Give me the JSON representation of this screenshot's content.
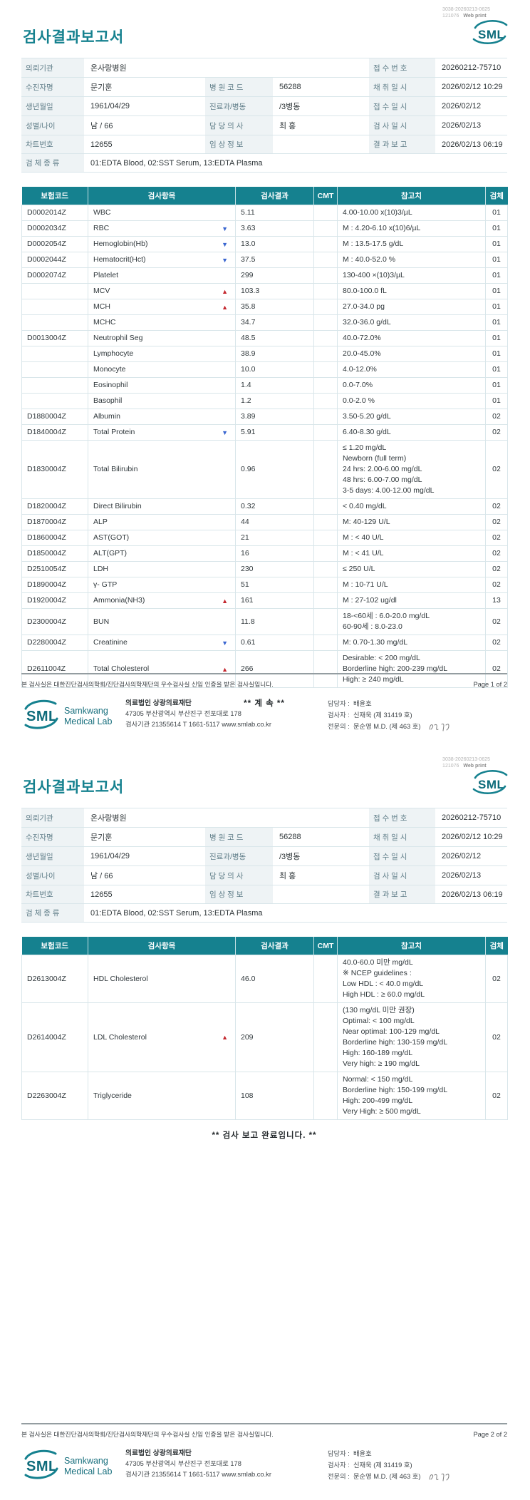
{
  "title": "검사결과보고서",
  "meta": {
    "print_code": "3038-20260213-0625",
    "print_serial": "121076",
    "print_label": "Web print"
  },
  "logo": {
    "abbr": "SML",
    "line1": "Samkwang",
    "line2": "Medical Lab"
  },
  "patient_info": {
    "rows": [
      [
        {
          "k": "label",
          "t": "의뢰기관"
        },
        {
          "k": "value",
          "t": "온사랑병원",
          "span": 3
        },
        {
          "k": "label",
          "t": "접 수 번 호"
        },
        {
          "k": "value",
          "t": "20260212-75710"
        }
      ],
      [
        {
          "k": "label",
          "t": "수진자명"
        },
        {
          "k": "value",
          "t": "문기훈"
        },
        {
          "k": "label",
          "t": "병 원 코 드"
        },
        {
          "k": "value",
          "t": "56288"
        },
        {
          "k": "label",
          "t": "채 취 일 시"
        },
        {
          "k": "value",
          "t": "2026/02/12 10:29"
        }
      ],
      [
        {
          "k": "label",
          "t": "생년월일"
        },
        {
          "k": "value",
          "t": "1961/04/29"
        },
        {
          "k": "label",
          "t": "진료과/병동"
        },
        {
          "k": "value",
          "t": "/3병동"
        },
        {
          "k": "label",
          "t": "접 수 일 시"
        },
        {
          "k": "value",
          "t": "2026/02/12"
        }
      ],
      [
        {
          "k": "label",
          "t": "성별/나이"
        },
        {
          "k": "value",
          "t": "남 / 66"
        },
        {
          "k": "label",
          "t": "담 당 의 사"
        },
        {
          "k": "value",
          "t": "최 홍"
        },
        {
          "k": "label",
          "t": "검 사 일 시"
        },
        {
          "k": "value",
          "t": "2026/02/13"
        }
      ],
      [
        {
          "k": "label",
          "t": "차트번호"
        },
        {
          "k": "value",
          "t": "12655"
        },
        {
          "k": "label",
          "t": "임 상 정 보"
        },
        {
          "k": "value",
          "t": ""
        },
        {
          "k": "label",
          "t": "결 과 보 고"
        },
        {
          "k": "value",
          "t": "2026/02/13 06:19"
        }
      ],
      [
        {
          "k": "label",
          "t": "검 체 종 류"
        },
        {
          "k": "value",
          "t": "01:EDTA Blood, 02:SST Serum, 13:EDTA Plasma",
          "span": 5
        }
      ]
    ]
  },
  "results_header": [
    "보험코드",
    "검사항목",
    "검사결과",
    "CMT",
    "참고치",
    "검체"
  ],
  "page1": {
    "note": "** 계 속 **",
    "page_label": "Page 1 of 2",
    "results": [
      {
        "code": "D0002014Z",
        "name": "WBC",
        "flag": "",
        "result": "5.11",
        "ref": [
          "4.00-10.00 x(10)3/µL"
        ],
        "specimen": "01"
      },
      {
        "code": "D0002034Z",
        "name": "RBC",
        "flag": "down",
        "result": "3.63",
        "ref": [
          "M : 4.20-6.10 x(10)6/µL"
        ],
        "specimen": "01"
      },
      {
        "code": "D0002054Z",
        "name": "Hemoglobin(Hb)",
        "flag": "down",
        "result": "13.0",
        "ref": [
          "M : 13.5-17.5 g/dL"
        ],
        "specimen": "01"
      },
      {
        "code": "D0002044Z",
        "name": "Hematocrit(Hct)",
        "flag": "down",
        "result": "37.5",
        "ref": [
          "M : 40.0-52.0 %"
        ],
        "specimen": "01"
      },
      {
        "code": "D0002074Z",
        "name": "Platelet",
        "flag": "",
        "result": "299",
        "ref": [
          "130-400 ×(10)3/µL"
        ],
        "specimen": "01"
      },
      {
        "code": "",
        "name": "MCV",
        "flag": "up",
        "result": "103.3",
        "ref": [
          "80.0-100.0 fL"
        ],
        "specimen": "01"
      },
      {
        "code": "",
        "name": "MCH",
        "flag": "up",
        "result": "35.8",
        "ref": [
          "27.0-34.0 pg"
        ],
        "specimen": "01"
      },
      {
        "code": "",
        "name": "MCHC",
        "flag": "",
        "result": "34.7",
        "ref": [
          "32.0-36.0 g/dL"
        ],
        "specimen": "01"
      },
      {
        "code": "D0013004Z",
        "name": "Neutrophil Seg",
        "flag": "",
        "result": "48.5",
        "ref": [
          "40.0-72.0%"
        ],
        "specimen": "01"
      },
      {
        "code": "",
        "name": "Lymphocyte",
        "flag": "",
        "result": "38.9",
        "ref": [
          "20.0-45.0%"
        ],
        "specimen": "01"
      },
      {
        "code": "",
        "name": "Monocyte",
        "flag": "",
        "result": "10.0",
        "ref": [
          "4.0-12.0%"
        ],
        "specimen": "01"
      },
      {
        "code": "",
        "name": "Eosinophil",
        "flag": "",
        "result": "1.4",
        "ref": [
          "0.0-7.0%"
        ],
        "specimen": "01"
      },
      {
        "code": "",
        "name": "Basophil",
        "flag": "",
        "result": "1.2",
        "ref": [
          "0.0-2.0 %"
        ],
        "specimen": "01"
      },
      {
        "code": "D1880004Z",
        "name": "Albumin",
        "flag": "",
        "result": "3.89",
        "ref": [
          "3.50-5.20 g/dL"
        ],
        "specimen": "02"
      },
      {
        "code": "D1840004Z",
        "name": "Total Protein",
        "flag": "down",
        "result": "5.91",
        "ref": [
          "6.40-8.30 g/dL"
        ],
        "specimen": "02"
      },
      {
        "code": "D1830004Z",
        "name": "Total Bilirubin",
        "flag": "",
        "result": "0.96",
        "ref": [
          "≤ 1.20 mg/dL",
          "Newborn (full term)",
          "24 hrs: 2.00-6.00 mg/dL",
          "48 hrs: 6.00-7.00 mg/dL",
          "3-5 days: 4.00-12.00 mg/dL"
        ],
        "specimen": "02"
      },
      {
        "code": "D1820004Z",
        "name": "Direct Bilirubin",
        "flag": "",
        "result": "0.32",
        "ref": [
          "< 0.40 mg/dL"
        ],
        "specimen": "02"
      },
      {
        "code": "D1870004Z",
        "name": "ALP",
        "flag": "",
        "result": "44",
        "ref": [
          "M: 40-129 U/L"
        ],
        "specimen": "02"
      },
      {
        "code": "D1860004Z",
        "name": "AST(GOT)",
        "flag": "",
        "result": "21",
        "ref": [
          "M : < 40 U/L"
        ],
        "specimen": "02"
      },
      {
        "code": "D1850004Z",
        "name": "ALT(GPT)",
        "flag": "",
        "result": "16",
        "ref": [
          "M : < 41 U/L"
        ],
        "specimen": "02"
      },
      {
        "code": "D2510054Z",
        "name": "LDH",
        "flag": "",
        "result": "230",
        "ref": [
          "≤ 250 U/L"
        ],
        "specimen": "02"
      },
      {
        "code": "D1890004Z",
        "name": "γ- GTP",
        "flag": "",
        "result": "51",
        "ref": [
          "M : 10-71 U/L"
        ],
        "specimen": "02"
      },
      {
        "code": "D1920004Z",
        "name": "Ammonia(NH3)",
        "flag": "up",
        "result": "161",
        "ref": [
          "M : 27-102 ug/dl"
        ],
        "specimen": "13"
      },
      {
        "code": "D2300004Z",
        "name": "BUN",
        "flag": "",
        "result": "11.8",
        "ref": [
          "18-<60세 : 6.0-20.0 mg/dL",
          "60-90세 : 8.0-23.0"
        ],
        "specimen": "02"
      },
      {
        "code": "D2280004Z",
        "name": "Creatinine",
        "flag": "down",
        "result": "0.61",
        "ref": [
          "M: 0.70-1.30 mg/dL"
        ],
        "specimen": "02"
      },
      {
        "code": "D2611004Z",
        "name": "Total Cholesterol",
        "flag": "up",
        "result": "266",
        "ref": [
          "Desirable: < 200 mg/dL",
          "Borderline high: 200-239 mg/dL",
          "High: ≥ 240 mg/dL"
        ],
        "specimen": "02"
      }
    ]
  },
  "page2": {
    "note": "** 검사 보고 완료입니다. **",
    "page_label": "Page 2 of 2",
    "results": [
      {
        "code": "D2613004Z",
        "name": "HDL Cholesterol",
        "flag": "",
        "result": "46.0",
        "ref": [
          "40.0-60.0 미만 mg/dL",
          "※ NCEP guidelines :",
          "Low HDL : < 40.0 mg/dL",
          "High HDL :  ≥ 60.0 mg/dL"
        ],
        "specimen": "02"
      },
      {
        "code": "D2614004Z",
        "name": "LDL Cholesterol",
        "flag": "up",
        "result": "209",
        "ref": [
          "(130 mg/dL 미만 권장)",
          "Optimal: < 100 mg/dL",
          "Near optimal: 100-129 mg/dL",
          "Borderline high: 130-159 mg/dL",
          "High: 160-189 mg/dL",
          "Very high: ≥ 190 mg/dL"
        ],
        "specimen": "02"
      },
      {
        "code": "D2263004Z",
        "name": "Triglyceride",
        "flag": "",
        "result": "108",
        "ref": [
          "Normal: < 150 mg/dL",
          "Borderline high: 150-199 mg/dL",
          "High: 200-499 mg/dL",
          "Very High: ≥ 500 mg/dL"
        ],
        "specimen": "02"
      }
    ]
  },
  "footer": {
    "certification": "본 검사실은 대한진단검사의학회/진단검사의학재단의 우수검사실 신임 인증을 받은 검사실입니다.",
    "company_name": "의료법인 상광의료재단",
    "address": "47305 부산광역시 부산진구 전포대로 178",
    "registration": "검사기관 21355614  T 1661-5117  www.smlab.co.kr",
    "staff": [
      {
        "label": "담당자 :",
        "value": "배윤호"
      },
      {
        "label": "검사자 :",
        "value": "신재욱 (제 31419 호)"
      },
      {
        "label": "전문의 :",
        "value": "문순영 M.D. (제 463 호)"
      }
    ]
  },
  "colors": {
    "teal": "#15818f",
    "high_red": "#c4272e",
    "low_blue": "#3a66d0"
  }
}
